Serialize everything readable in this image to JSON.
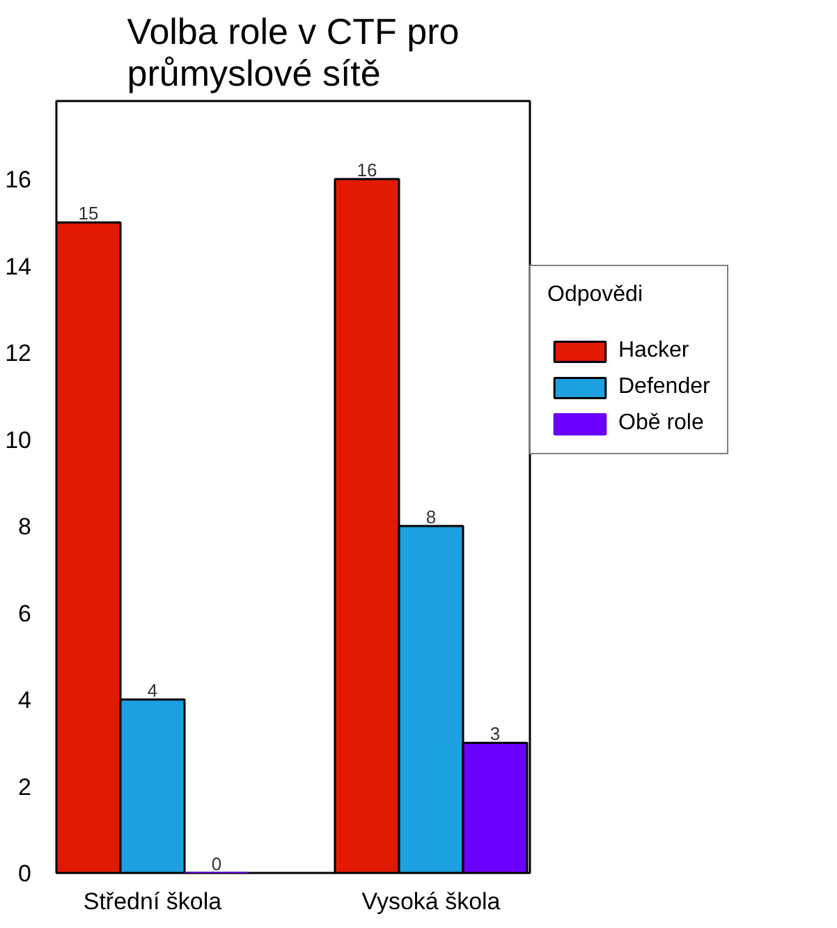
{
  "chart_data": {
    "type": "bar",
    "title": "Volba role v CTF pro\nprůmyslové sítě",
    "categories": [
      "Střední škola",
      "Vysoká škola"
    ],
    "series": [
      {
        "name": "Hacker",
        "color": "#e31a03",
        "values": [
          15,
          16
        ]
      },
      {
        "name": "Defender",
        "color": "#1ca0e0",
        "values": [
          4,
          8
        ]
      },
      {
        "name": "Obě role",
        "color": "#6a00ff",
        "values": [
          0,
          3
        ]
      }
    ],
    "ylim": [
      0,
      17.8
    ],
    "yticks": [
      0,
      2,
      4,
      6,
      8,
      10,
      12,
      14,
      16
    ],
    "data_labels": true,
    "grid": false,
    "legend": "right",
    "legend_title": "Odpovědi"
  }
}
